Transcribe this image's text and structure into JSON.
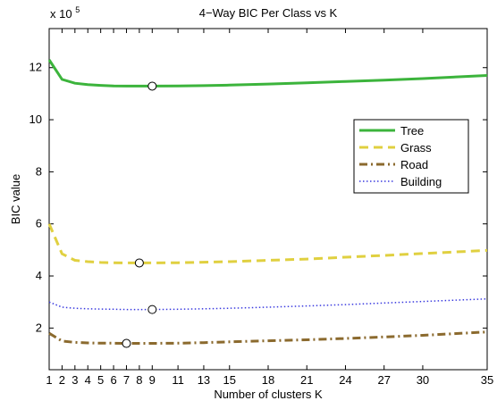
{
  "chart_data": {
    "type": "line",
    "title": "4−Way BIC Per Class vs K",
    "xlabel": "Number of clusters K",
    "ylabel": "BIC value",
    "y_multiplier": "x 10",
    "y_multiplier_exp": "5",
    "xlim": [
      1,
      35
    ],
    "ylim": [
      0.4,
      13.5
    ],
    "grid": false,
    "legend_position": "right",
    "x_ticks": [
      1,
      2,
      3,
      4,
      5,
      6,
      7,
      8,
      9,
      11,
      13,
      15,
      18,
      21,
      24,
      27,
      30,
      35
    ],
    "y_ticks": [
      2,
      4,
      6,
      8,
      10,
      12
    ],
    "series": [
      {
        "name": "Tree",
        "color": "#3cb43c",
        "style": "solid",
        "width": 3,
        "x": [
          1,
          2,
          3,
          4,
          5,
          6,
          7,
          8,
          9,
          11,
          13,
          15,
          18,
          21,
          24,
          27,
          30,
          35
        ],
        "y": [
          12.3,
          11.55,
          11.4,
          11.35,
          11.32,
          11.3,
          11.29,
          11.29,
          11.29,
          11.3,
          11.31,
          11.33,
          11.37,
          11.42,
          11.47,
          11.52,
          11.58,
          11.7
        ],
        "optimal_k": 9,
        "optimal_value": 11.29
      },
      {
        "name": "Grass",
        "color": "#e0d040",
        "style": "dashed",
        "width": 3,
        "x": [
          1,
          2,
          3,
          4,
          5,
          6,
          7,
          8,
          9,
          11,
          13,
          15,
          18,
          21,
          24,
          27,
          30,
          35
        ],
        "y": [
          6.0,
          4.85,
          4.6,
          4.55,
          4.52,
          4.51,
          4.5,
          4.5,
          4.5,
          4.51,
          4.53,
          4.55,
          4.6,
          4.65,
          4.72,
          4.79,
          4.86,
          4.98
        ],
        "optimal_k": 8,
        "optimal_value": 4.5
      },
      {
        "name": "Road",
        "color": "#8b6a2e",
        "style": "dashdot",
        "width": 3,
        "x": [
          1,
          2,
          3,
          4,
          5,
          6,
          7,
          8,
          9,
          11,
          13,
          15,
          18,
          21,
          24,
          27,
          30,
          35
        ],
        "y": [
          1.8,
          1.5,
          1.45,
          1.43,
          1.42,
          1.42,
          1.41,
          1.41,
          1.41,
          1.42,
          1.44,
          1.47,
          1.51,
          1.55,
          1.6,
          1.66,
          1.72,
          1.85
        ],
        "optimal_k": 7,
        "optimal_value": 1.41
      },
      {
        "name": "Building",
        "color": "#3a3adf",
        "style": "dotted",
        "width": 1.5,
        "x": [
          1,
          2,
          3,
          4,
          5,
          6,
          7,
          8,
          9,
          11,
          13,
          15,
          18,
          21,
          24,
          27,
          30,
          35
        ],
        "y": [
          3.0,
          2.8,
          2.76,
          2.74,
          2.73,
          2.72,
          2.71,
          2.71,
          2.71,
          2.72,
          2.74,
          2.76,
          2.8,
          2.85,
          2.9,
          2.96,
          3.02,
          3.12
        ],
        "optimal_k": 9,
        "optimal_value": 2.71
      }
    ]
  }
}
